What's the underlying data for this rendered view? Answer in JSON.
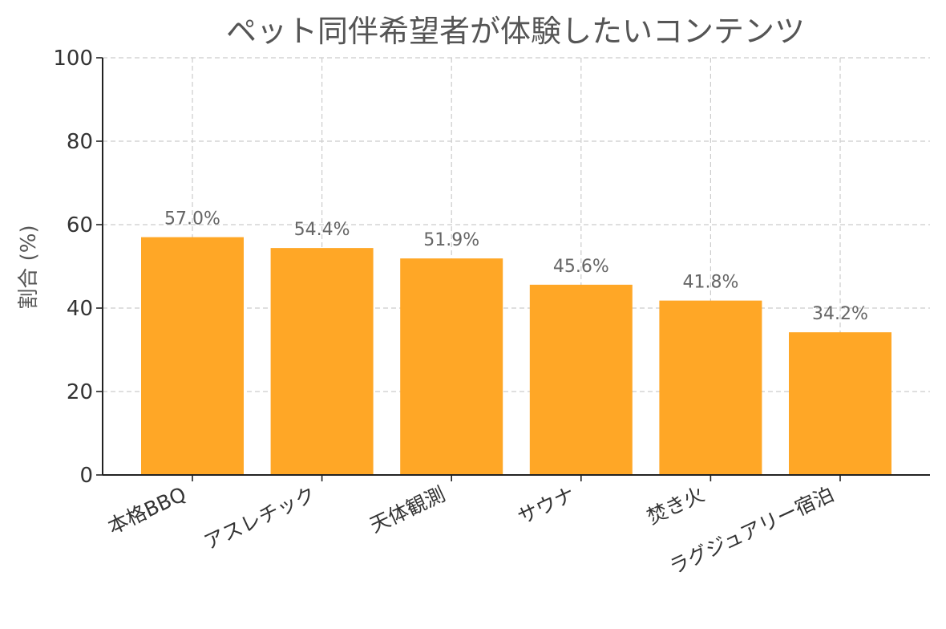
{
  "chart_data": {
    "type": "bar",
    "title": "ペット同伴希望者が体験したいコンテンツ",
    "xlabel": "",
    "ylabel": "割合 (%)",
    "categories": [
      "本格BBQ",
      "アスレチック",
      "天体観測",
      "サウナ",
      "焚き火",
      "ラグジュアリー宿泊"
    ],
    "values": [
      57.0,
      54.4,
      51.9,
      45.6,
      41.8,
      34.2
    ],
    "data_labels": [
      "57.0%",
      "54.4%",
      "51.9%",
      "45.6%",
      "41.8%",
      "34.2%"
    ],
    "ylim": [
      0,
      100
    ],
    "yticks": [
      0,
      20,
      40,
      60,
      80,
      100
    ],
    "grid": true,
    "bar_color": "#FFA726"
  }
}
